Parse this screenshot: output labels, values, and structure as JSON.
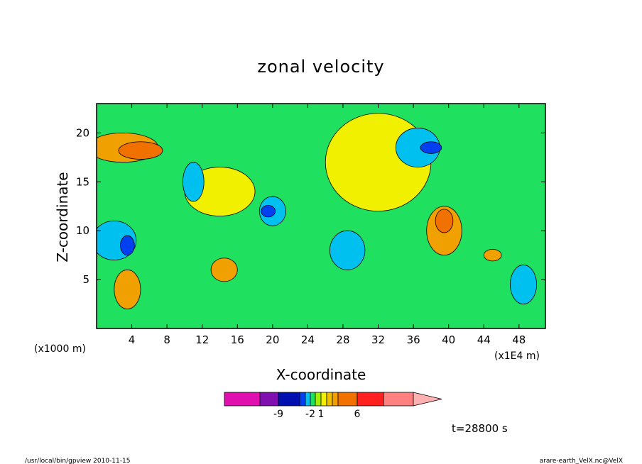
{
  "chart_data": {
    "type": "heatmap",
    "subtype": "filled-contour",
    "title": "zonal velocity",
    "xlabel": "X-coordinate",
    "ylabel": "Z-coordinate",
    "x_unit_left": "(x1000 m)",
    "x_unit_right": "(x1E4 m)",
    "xlim": [
      0,
      51
    ],
    "ylim": [
      0,
      23
    ],
    "x_ticks": [
      4,
      8,
      12,
      16,
      20,
      24,
      28,
      32,
      36,
      40,
      44,
      48
    ],
    "y_ticks": [
      5,
      10,
      15,
      20
    ],
    "colorbar": {
      "colors": [
        "#e010b0",
        "#8010b0",
        "#0010b0",
        "#0040f0",
        "#00c0f0",
        "#20e060",
        "#a0f000",
        "#f0f000",
        "#f0c000",
        "#f0a000",
        "#f07000",
        "#ff2020",
        "#ff8080",
        "#ffb0b0"
      ],
      "tick_labels": [
        "-9",
        "-2",
        "1",
        "6"
      ],
      "extend": "max"
    },
    "regions": [
      {
        "level": "1..2",
        "x": 3,
        "y": 18.5,
        "rx": 4,
        "ry": 1.5
      },
      {
        "level": "2..3",
        "x": 5,
        "y": 18.2,
        "rx": 2.5,
        "ry": 0.9
      },
      {
        "level": "0..1",
        "x": 32,
        "y": 17,
        "rx": 6,
        "ry": 5
      },
      {
        "level": "0..1",
        "x": 14,
        "y": 14,
        "rx": 4,
        "ry": 2.5
      },
      {
        "level": "-1..0",
        "x": 11,
        "y": 15,
        "rx": 1.2,
        "ry": 2
      },
      {
        "level": "-1..0",
        "x": 20,
        "y": 12,
        "rx": 1.5,
        "ry": 1.5
      },
      {
        "level": "-3..-2",
        "x": 19.5,
        "y": 12,
        "rx": 0.8,
        "ry": 0.6
      },
      {
        "level": "-1..0",
        "x": 28.5,
        "y": 8,
        "rx": 2,
        "ry": 2
      },
      {
        "level": "-1..0",
        "x": 36.5,
        "y": 18.5,
        "rx": 2.5,
        "ry": 2
      },
      {
        "level": "-3..-2",
        "x": 38,
        "y": 18.5,
        "rx": 1.2,
        "ry": 0.6
      },
      {
        "level": "1..2",
        "x": 39.5,
        "y": 10,
        "rx": 2,
        "ry": 2.5
      },
      {
        "level": "2..3",
        "x": 39.5,
        "y": 11,
        "rx": 1,
        "ry": 1.2
      },
      {
        "level": "1..2",
        "x": 45,
        "y": 7.5,
        "rx": 1,
        "ry": 0.6
      },
      {
        "level": "-1..0",
        "x": 2,
        "y": 9,
        "rx": 2.5,
        "ry": 2
      },
      {
        "level": "-3..-2",
        "x": 3.5,
        "y": 8.5,
        "rx": 0.8,
        "ry": 1
      },
      {
        "level": "1..2",
        "x": 14.5,
        "y": 6,
        "rx": 1.5,
        "ry": 1.2
      },
      {
        "level": "1..2",
        "x": 3.5,
        "y": 4,
        "rx": 1.5,
        "ry": 2
      },
      {
        "level": "-1..0",
        "x": 48.5,
        "y": 4.5,
        "rx": 1.5,
        "ry": 2
      }
    ],
    "annotation": "t=28800 s",
    "grid": false
  },
  "footer": {
    "left": "/usr/local/bin/gpview   2010-11-15",
    "right": "arare-earth_VelX.nc@VelX"
  }
}
